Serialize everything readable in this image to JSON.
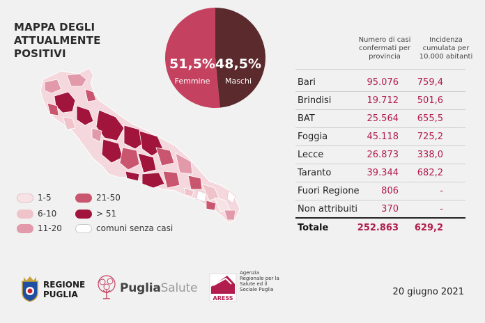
{
  "title": "MAPPA DEGLI ATTUALMENTE POSITIVI",
  "pie": {
    "female_pct": "51,5%",
    "female_label": "Femmine",
    "male_pct": "48,5%",
    "male_label": "Maschi",
    "female_value": 51.5,
    "male_value": 48.5,
    "female_color": "#c4415f",
    "male_color": "#5b2a2c"
  },
  "legend": [
    {
      "label": "1-5",
      "color": "#f7e3e6"
    },
    {
      "label": "6-10",
      "color": "#f0c3ca"
    },
    {
      "label": "11-20",
      "color": "#e29aab"
    },
    {
      "label": "21-50",
      "color": "#c9556f"
    },
    {
      "label": "> 51",
      "color": "#a1153d"
    },
    {
      "label": "comuni senza casi",
      "color": "#ffffff"
    }
  ],
  "table": {
    "header_cases": "Numero di casi confermati per provincia",
    "header_incidence": "Incidenza cumulata per 10.000 abitanti",
    "rows": [
      {
        "name": "Bari",
        "cases": "95.076",
        "incidence": "759,4"
      },
      {
        "name": "Brindisi",
        "cases": "19.712",
        "incidence": "501,6"
      },
      {
        "name": "BAT",
        "cases": "25.564",
        "incidence": "655,5"
      },
      {
        "name": "Foggia",
        "cases": "45.118",
        "incidence": "725,2"
      },
      {
        "name": "Lecce",
        "cases": "26.873",
        "incidence": "338,0"
      },
      {
        "name": "Taranto",
        "cases": "39.344",
        "incidence": "682,2"
      },
      {
        "name": "Fuori Regione",
        "cases": "806",
        "incidence": "-"
      },
      {
        "name": "Non attribuiti",
        "cases": "370",
        "incidence": "-"
      }
    ],
    "total": {
      "name": "Totale",
      "cases": "252.863",
      "incidence": "629,2"
    }
  },
  "footer": {
    "regione_line1": "REGIONE",
    "regione_line2": "PUGLIA",
    "puglia": "Puglia",
    "salute": "Salute",
    "ares_logo": "ARESS",
    "ares_text": "Agenzia Regionale per la Salute ed il Sociale Puglia",
    "date": "20 giugno 2021"
  },
  "colors": {
    "accent": "#b11d4d",
    "background": "#f2f1f1"
  }
}
